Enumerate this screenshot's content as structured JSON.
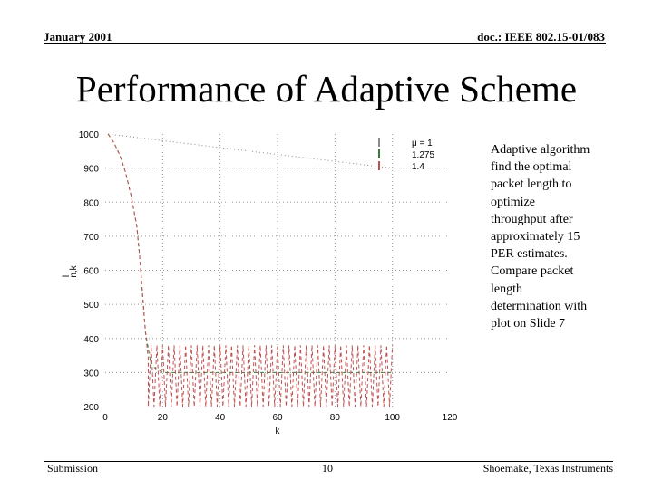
{
  "header": {
    "left": "January 2001",
    "right": "doc.: IEEE 802.15-01/083"
  },
  "slide_title": "Performance of Adaptive Scheme",
  "side_text": "Adaptive algorithm find the optimal packet length to optimize throughput after approximately 15 PER estimates. Compare packet length determination with plot on Slide 7",
  "footer": {
    "left": "Submission",
    "center": "10",
    "right": "Shoemake, Texas Instruments"
  },
  "chart_data": {
    "type": "line",
    "xlabel": "k",
    "ylabel": "l",
    "ylabel_sub": "n,k",
    "xlim": [
      0,
      120
    ],
    "ylim": [
      200,
      1000
    ],
    "xticks": [
      0,
      20,
      40,
      60,
      80,
      100,
      120
    ],
    "yticks": [
      200,
      300,
      400,
      500,
      600,
      700,
      800,
      900,
      1000
    ],
    "grid": true,
    "legend_position": "top-right",
    "legend_title": "μ = 1",
    "series": [
      {
        "name": "μ = 1",
        "color": "#8a8a8a",
        "style": "dotted",
        "x": [
          1,
          50,
          100
        ],
        "values": [
          1000,
          950,
          900
        ]
      },
      {
        "name": "1.275",
        "color": "#3a7a3a",
        "style": "dashed",
        "x": [
          1,
          3,
          5,
          7,
          9,
          11,
          12,
          13,
          14,
          16,
          20,
          40,
          60,
          80,
          100
        ],
        "values": [
          1000,
          975,
          940,
          890,
          820,
          730,
          640,
          530,
          420,
          320,
          300,
          300,
          300,
          300,
          300
        ]
      },
      {
        "name": "1.4",
        "color": "#c05050",
        "style": "dashed-oscillating",
        "oscillate_range": [
          200,
          380
        ],
        "x_start": 15,
        "x_end": 100,
        "x": [
          1,
          3,
          5,
          7,
          9,
          11,
          12,
          13,
          14,
          15
        ],
        "values": [
          1000,
          975,
          940,
          890,
          820,
          730,
          640,
          530,
          420,
          340
        ]
      }
    ]
  }
}
